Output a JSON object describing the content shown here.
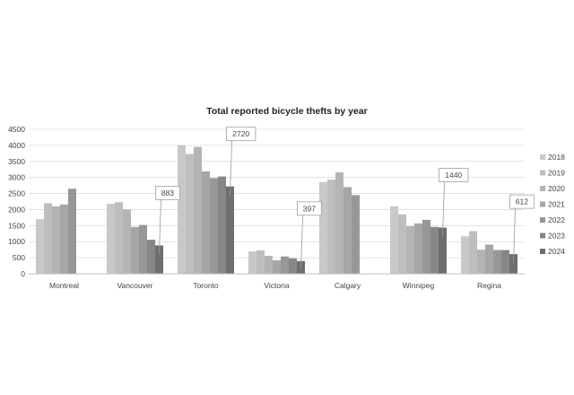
{
  "chart_data": {
    "type": "bar",
    "title": "Total reported bicycle thefts by year",
    "xlabel": "",
    "ylabel": "",
    "ylim": [
      0,
      4500
    ],
    "y_ticks": [
      0,
      500,
      1000,
      1500,
      2000,
      2500,
      3000,
      3500,
      4000,
      4500
    ],
    "grid": "horizontal",
    "legend_position": "right",
    "categories": [
      "Montreal",
      "Vancouver",
      "Toronto",
      "Victoria",
      "Calgary",
      "Winnipeg",
      "Regina"
    ],
    "series": [
      {
        "name": "2018",
        "color": "#c8c8c8",
        "values": [
          1700,
          2180,
          4000,
          700,
          2860,
          2100,
          1170
        ]
      },
      {
        "name": "2019",
        "color": "#bebebe",
        "values": [
          2200,
          2230,
          3730,
          730,
          2930,
          1850,
          1330
        ]
      },
      {
        "name": "2020",
        "color": "#b4b4b4",
        "values": [
          2100,
          2000,
          3950,
          560,
          3160,
          1480,
          750
        ]
      },
      {
        "name": "2021",
        "color": "#a6a6a6",
        "values": [
          2160,
          1460,
          3190,
          420,
          2700,
          1570,
          910
        ]
      },
      {
        "name": "2022",
        "color": "#979797",
        "values": [
          2650,
          1520,
          2980,
          540,
          2450,
          1680,
          740
        ]
      },
      {
        "name": "2023",
        "color": "#878787",
        "values": [
          null,
          1060,
          3030,
          480,
          null,
          1460,
          740
        ]
      },
      {
        "name": "2024",
        "color": "#6e6e6e",
        "values": [
          null,
          883,
          2720,
          397,
          null,
          1440,
          612
        ]
      }
    ],
    "annotations": [
      {
        "category": "Vancouver",
        "series": "2024",
        "text": "883"
      },
      {
        "category": "Toronto",
        "series": "2024",
        "text": "2720"
      },
      {
        "category": "Victoria",
        "series": "2024",
        "text": "397"
      },
      {
        "category": "Winnipeg",
        "series": "2024",
        "text": "1440"
      },
      {
        "category": "Regina",
        "series": "2024",
        "text": "612"
      }
    ]
  }
}
